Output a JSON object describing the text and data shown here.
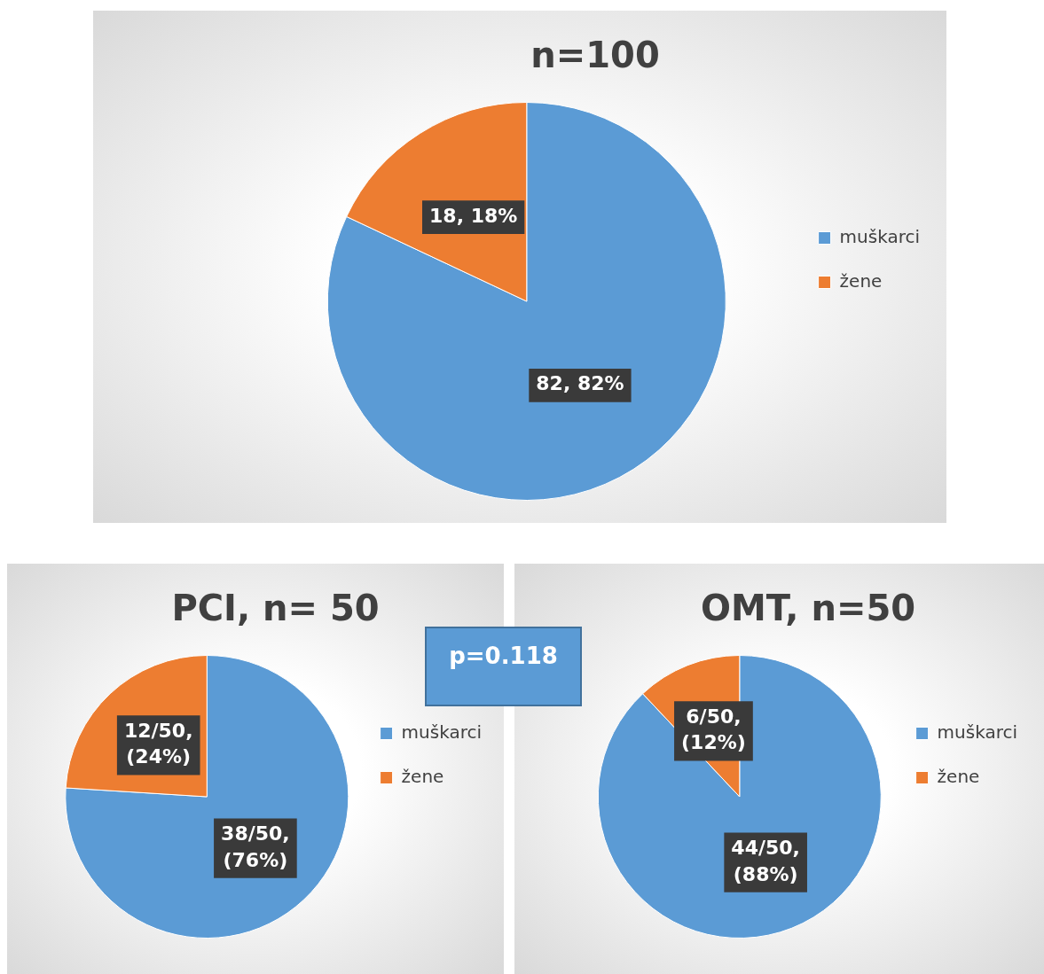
{
  "chart_data": [
    {
      "type": "pie",
      "title": "n=100",
      "categories": [
        "muškarci",
        "žene"
      ],
      "values": [
        82,
        18
      ],
      "colors": [
        "#5b9bd5",
        "#ed7d31"
      ],
      "value_labels": [
        "82, 82%",
        "18, 18%"
      ],
      "legend": "right"
    },
    {
      "type": "pie",
      "title": "PCI, n= 50",
      "categories": [
        "muškarci",
        "žene"
      ],
      "values": [
        38,
        12
      ],
      "colors": [
        "#5b9bd5",
        "#ed7d31"
      ],
      "value_labels": [
        "38/50, (76%)",
        "12/50, (24%)"
      ],
      "legend": "right",
      "annotations": [
        "p=0.118"
      ]
    },
    {
      "type": "pie",
      "title": "OMT, n=50",
      "categories": [
        "muškarci",
        "žene"
      ],
      "values": [
        44,
        6
      ],
      "colors": [
        "#5b9bd5",
        "#ed7d31"
      ],
      "value_labels": [
        "44/50, (88%)",
        "6/50, (12%)"
      ],
      "legend": "right"
    }
  ]
}
